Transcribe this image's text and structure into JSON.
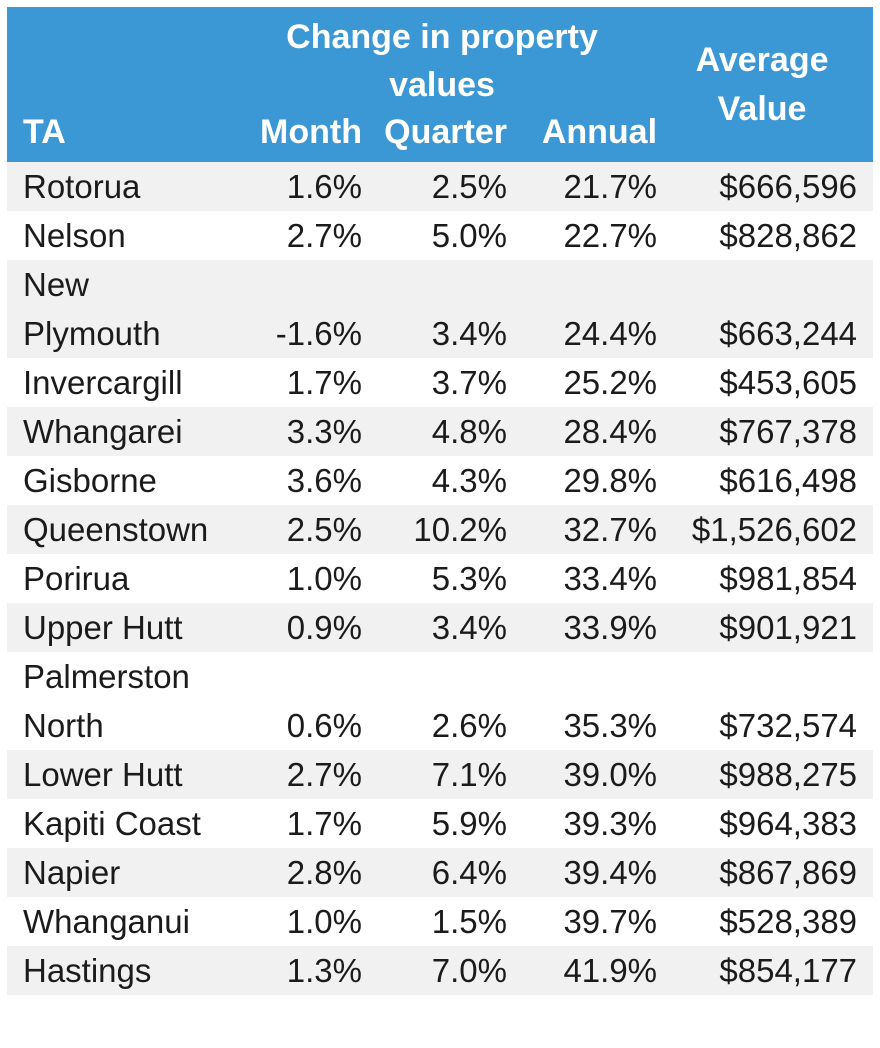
{
  "colors": {
    "header_blue": "#3b98d5",
    "row_alt_gray": "#f1f1f2",
    "body_text": "#1b1b1b",
    "header_text": "#ffffff"
  },
  "header": {
    "group_title": "Change in property values",
    "avg_title": "Average Value",
    "columns": [
      "TA",
      "Month",
      "Quarter",
      "Annual"
    ]
  },
  "chart_data": {
    "type": "table",
    "title": "Change in property values",
    "columns": [
      "TA",
      "Month",
      "Quarter",
      "Annual",
      "Average Value"
    ],
    "rows": [
      [
        "Rotorua",
        "1.6%",
        "2.5%",
        "21.7%",
        "$666,596"
      ],
      [
        "Nelson",
        "2.7%",
        "5.0%",
        "22.7%",
        "$828,862"
      ],
      [
        "New Plymouth",
        "-1.6%",
        "3.4%",
        "24.4%",
        "$663,244"
      ],
      [
        "Invercargill",
        "1.7%",
        "3.7%",
        "25.2%",
        "$453,605"
      ],
      [
        "Whangarei",
        "3.3%",
        "4.8%",
        "28.4%",
        "$767,378"
      ],
      [
        "Gisborne",
        "3.6%",
        "4.3%",
        "29.8%",
        "$616,498"
      ],
      [
        "Queenstown",
        "2.5%",
        "10.2%",
        "32.7%",
        "$1,526,602"
      ],
      [
        "Porirua",
        "1.0%",
        "5.3%",
        "33.4%",
        "$981,854"
      ],
      [
        "Upper Hutt",
        "0.9%",
        "3.4%",
        "33.9%",
        "$901,921"
      ],
      [
        "Palmerston North",
        "0.6%",
        "2.6%",
        "35.3%",
        "$732,574"
      ],
      [
        "Lower Hutt",
        "2.7%",
        "7.1%",
        "39.0%",
        "$988,275"
      ],
      [
        "Kapiti Coast",
        "1.7%",
        "5.9%",
        "39.3%",
        "$964,383"
      ],
      [
        "Napier",
        "2.8%",
        "6.4%",
        "39.4%",
        "$867,869"
      ],
      [
        "Whanganui",
        "1.0%",
        "1.5%",
        "39.7%",
        "$528,389"
      ],
      [
        "Hastings",
        "1.3%",
        "7.0%",
        "41.9%",
        "$854,177"
      ]
    ]
  }
}
